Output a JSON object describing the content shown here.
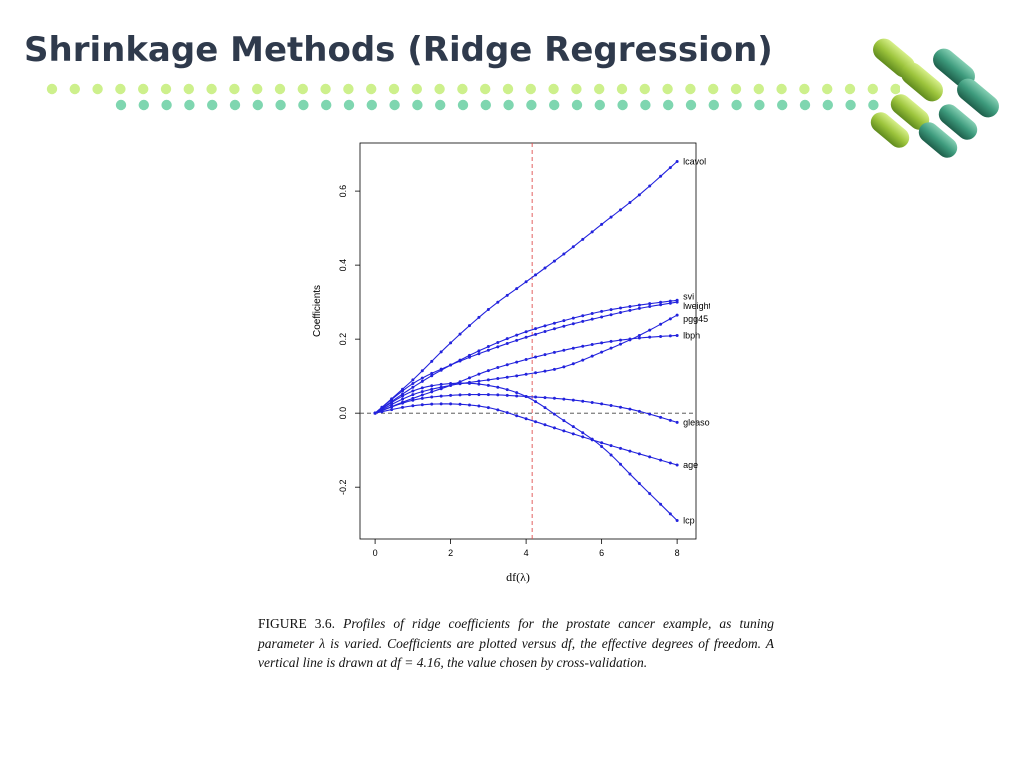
{
  "slide": {
    "title": "Shrinkage Methods (Ridge Regression)"
  },
  "colors": {
    "title": "#2f3a4c",
    "dots_top": "#cdf08c",
    "dots_bottom": "#7fd6b0",
    "series_line": "#2222dd",
    "vline": "#e05050"
  },
  "caption": {
    "figure_label": "FIGURE 3.6.",
    "text": "Profiles of ridge coefficients for the prostate cancer example, as tuning parameter λ is varied. Coefficients are plotted versus df, the effective degrees of freedom. A vertical line is drawn at df = 4.16, the value chosen by cross-validation."
  },
  "chart_data": {
    "type": "line",
    "xlabel": "df(λ)",
    "ylabel": "Coefficients",
    "xlim": [
      -0.4,
      8.5
    ],
    "ylim": [
      -0.34,
      0.73
    ],
    "xticks": [
      0,
      2,
      4,
      6,
      8
    ],
    "yticks": [
      -0.2,
      0.0,
      0.2,
      0.4,
      0.6
    ],
    "ytick_labels": [
      "-0.2",
      "0.0",
      "0.2",
      "0.4",
      "0.6"
    ],
    "hline": 0.0,
    "vline": 4.16,
    "grid": false,
    "series": [
      {
        "name": "lcavol",
        "points": [
          [
            0,
            0
          ],
          [
            1,
            0.09
          ],
          [
            2,
            0.19
          ],
          [
            3,
            0.28
          ],
          [
            4,
            0.355
          ],
          [
            5,
            0.43
          ],
          [
            6,
            0.51
          ],
          [
            7,
            0.59
          ],
          [
            8,
            0.68
          ]
        ]
      },
      {
        "name": "svi",
        "points": [
          [
            0,
            0
          ],
          [
            1,
            0.07
          ],
          [
            2,
            0.13
          ],
          [
            3,
            0.18
          ],
          [
            4,
            0.22
          ],
          [
            5,
            0.25
          ],
          [
            6,
            0.275
          ],
          [
            7,
            0.292
          ],
          [
            8,
            0.305
          ]
        ]
      },
      {
        "name": "lweight",
        "points": [
          [
            0,
            0
          ],
          [
            1,
            0.08
          ],
          [
            2,
            0.13
          ],
          [
            3,
            0.17
          ],
          [
            4,
            0.205
          ],
          [
            5,
            0.235
          ],
          [
            6,
            0.26
          ],
          [
            7,
            0.283
          ],
          [
            8,
            0.3
          ]
        ]
      },
      {
        "name": "pgg45",
        "points": [
          [
            0,
            0
          ],
          [
            1,
            0.05
          ],
          [
            2,
            0.075
          ],
          [
            3,
            0.09
          ],
          [
            4,
            0.105
          ],
          [
            5,
            0.125
          ],
          [
            6,
            0.165
          ],
          [
            7,
            0.21
          ],
          [
            8,
            0.265
          ]
        ]
      },
      {
        "name": "lbph",
        "points": [
          [
            0,
            0
          ],
          [
            1,
            0.04
          ],
          [
            2,
            0.075
          ],
          [
            3,
            0.115
          ],
          [
            4,
            0.145
          ],
          [
            5,
            0.17
          ],
          [
            6,
            0.19
          ],
          [
            7,
            0.203
          ],
          [
            8,
            0.21
          ]
        ]
      },
      {
        "name": "gleason",
        "points": [
          [
            0,
            0
          ],
          [
            1,
            0.035
          ],
          [
            2,
            0.048
          ],
          [
            3,
            0.05
          ],
          [
            4,
            0.045
          ],
          [
            5,
            0.038
          ],
          [
            6,
            0.025
          ],
          [
            7,
            0.005
          ],
          [
            8,
            -0.025
          ]
        ]
      },
      {
        "name": "age",
        "points": [
          [
            0,
            0
          ],
          [
            1,
            0.02
          ],
          [
            2,
            0.025
          ],
          [
            3,
            0.015
          ],
          [
            4,
            -0.015
          ],
          [
            5,
            -0.048
          ],
          [
            6,
            -0.08
          ],
          [
            7,
            -0.11
          ],
          [
            8,
            -0.14
          ]
        ]
      },
      {
        "name": "lcp",
        "points": [
          [
            0,
            0
          ],
          [
            1,
            0.06
          ],
          [
            2,
            0.08
          ],
          [
            3,
            0.075
          ],
          [
            4,
            0.045
          ],
          [
            5,
            -0.02
          ],
          [
            6,
            -0.09
          ],
          [
            7,
            -0.19
          ],
          [
            8,
            -0.29
          ]
        ]
      }
    ],
    "labels": [
      {
        "name": "lcavol",
        "text": "lcavol"
      },
      {
        "name": "svi",
        "text": "svi"
      },
      {
        "name": "lweight",
        "text": "lweight"
      },
      {
        "name": "pgg45",
        "text": "pgg45"
      },
      {
        "name": "lbph",
        "text": "lbph"
      },
      {
        "name": "gleason",
        "text": "gleason"
      },
      {
        "name": "age",
        "text": "age"
      },
      {
        "name": "lcp",
        "text": "lcp"
      }
    ]
  }
}
